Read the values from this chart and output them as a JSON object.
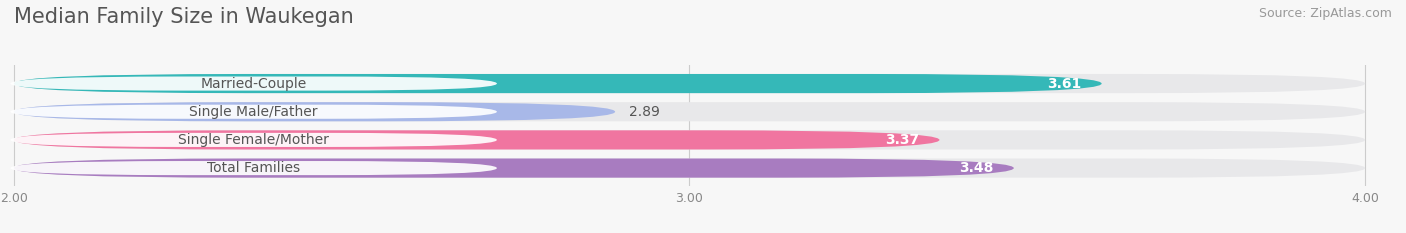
{
  "title": "Median Family Size in Waukegan",
  "source": "Source: ZipAtlas.com",
  "categories": [
    "Married-Couple",
    "Single Male/Father",
    "Single Female/Mother",
    "Total Families"
  ],
  "values": [
    3.61,
    2.89,
    3.37,
    3.48
  ],
  "bar_colors": [
    "#35b8b8",
    "#a8b8e8",
    "#f075a0",
    "#a87cc0"
  ],
  "value_on_bar": [
    true,
    false,
    true,
    true
  ],
  "x_min": 2.0,
  "x_max": 4.0,
  "x_ticks": [
    2.0,
    3.0,
    4.0
  ],
  "background_color": "#f7f7f7",
  "bar_bg_color": "#e8e8ea",
  "title_fontsize": 15,
  "source_fontsize": 9,
  "label_fontsize": 10,
  "value_fontsize": 10
}
